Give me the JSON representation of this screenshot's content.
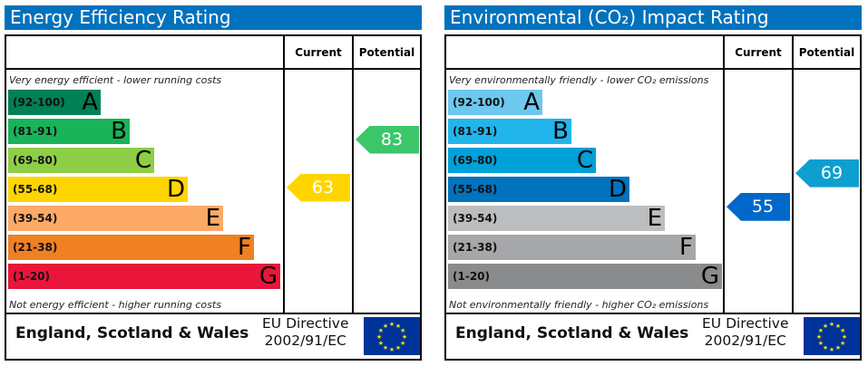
{
  "chart_data": [
    {
      "type": "table",
      "title": "Energy Efficiency Rating",
      "columns": [
        "Current",
        "Potential"
      ],
      "top_note": "Very energy efficient - lower running costs",
      "bottom_note": "Not energy efficient - higher running costs",
      "bands": [
        {
          "range": "(92-100)",
          "letter": "A",
          "color": "#008054"
        },
        {
          "range": "(81-91)",
          "letter": "B",
          "color": "#19b459"
        },
        {
          "range": "(69-80)",
          "letter": "C",
          "color": "#8dce46"
        },
        {
          "range": "(55-68)",
          "letter": "D",
          "color": "#ffd500"
        },
        {
          "range": "(39-54)",
          "letter": "E",
          "color": "#fcaa65"
        },
        {
          "range": "(21-38)",
          "letter": "F",
          "color": "#ef8023"
        },
        {
          "range": "(1-20)",
          "letter": "G",
          "color": "#e9153b"
        }
      ],
      "current": {
        "value": 63,
        "color": "#ffd500"
      },
      "potential": {
        "value": 83,
        "color": "#3cc66a"
      },
      "footer": {
        "region": "England, Scotland & Wales",
        "directive_line1": "EU Directive",
        "directive_line2": "2002/91/EC"
      }
    },
    {
      "type": "table",
      "title": "Environmental (CO₂) Impact Rating",
      "columns": [
        "Current",
        "Potential"
      ],
      "top_note": "Very environmentally friendly - lower CO₂ emissions",
      "bottom_note": "Not environmentally friendly - higher CO₂ emissions",
      "bands": [
        {
          "range": "(92-100)",
          "letter": "A",
          "color": "#6dc7ef"
        },
        {
          "range": "(81-91)",
          "letter": "B",
          "color": "#22b5eb"
        },
        {
          "range": "(69-80)",
          "letter": "C",
          "color": "#00a0d8"
        },
        {
          "range": "(55-68)",
          "letter": "D",
          "color": "#0073be"
        },
        {
          "range": "(39-54)",
          "letter": "E",
          "color": "#bbbdbf"
        },
        {
          "range": "(21-38)",
          "letter": "F",
          "color": "#a6a7a9"
        },
        {
          "range": "(1-20)",
          "letter": "G",
          "color": "#8a8b8d"
        }
      ],
      "current": {
        "value": 55,
        "color": "#0068c8"
      },
      "potential": {
        "value": 69,
        "color": "#0d9fd0"
      },
      "footer": {
        "region": "England, Scotland & Wales",
        "directive_line1": "EU Directive",
        "directive_line2": "2002/91/EC"
      }
    }
  ]
}
